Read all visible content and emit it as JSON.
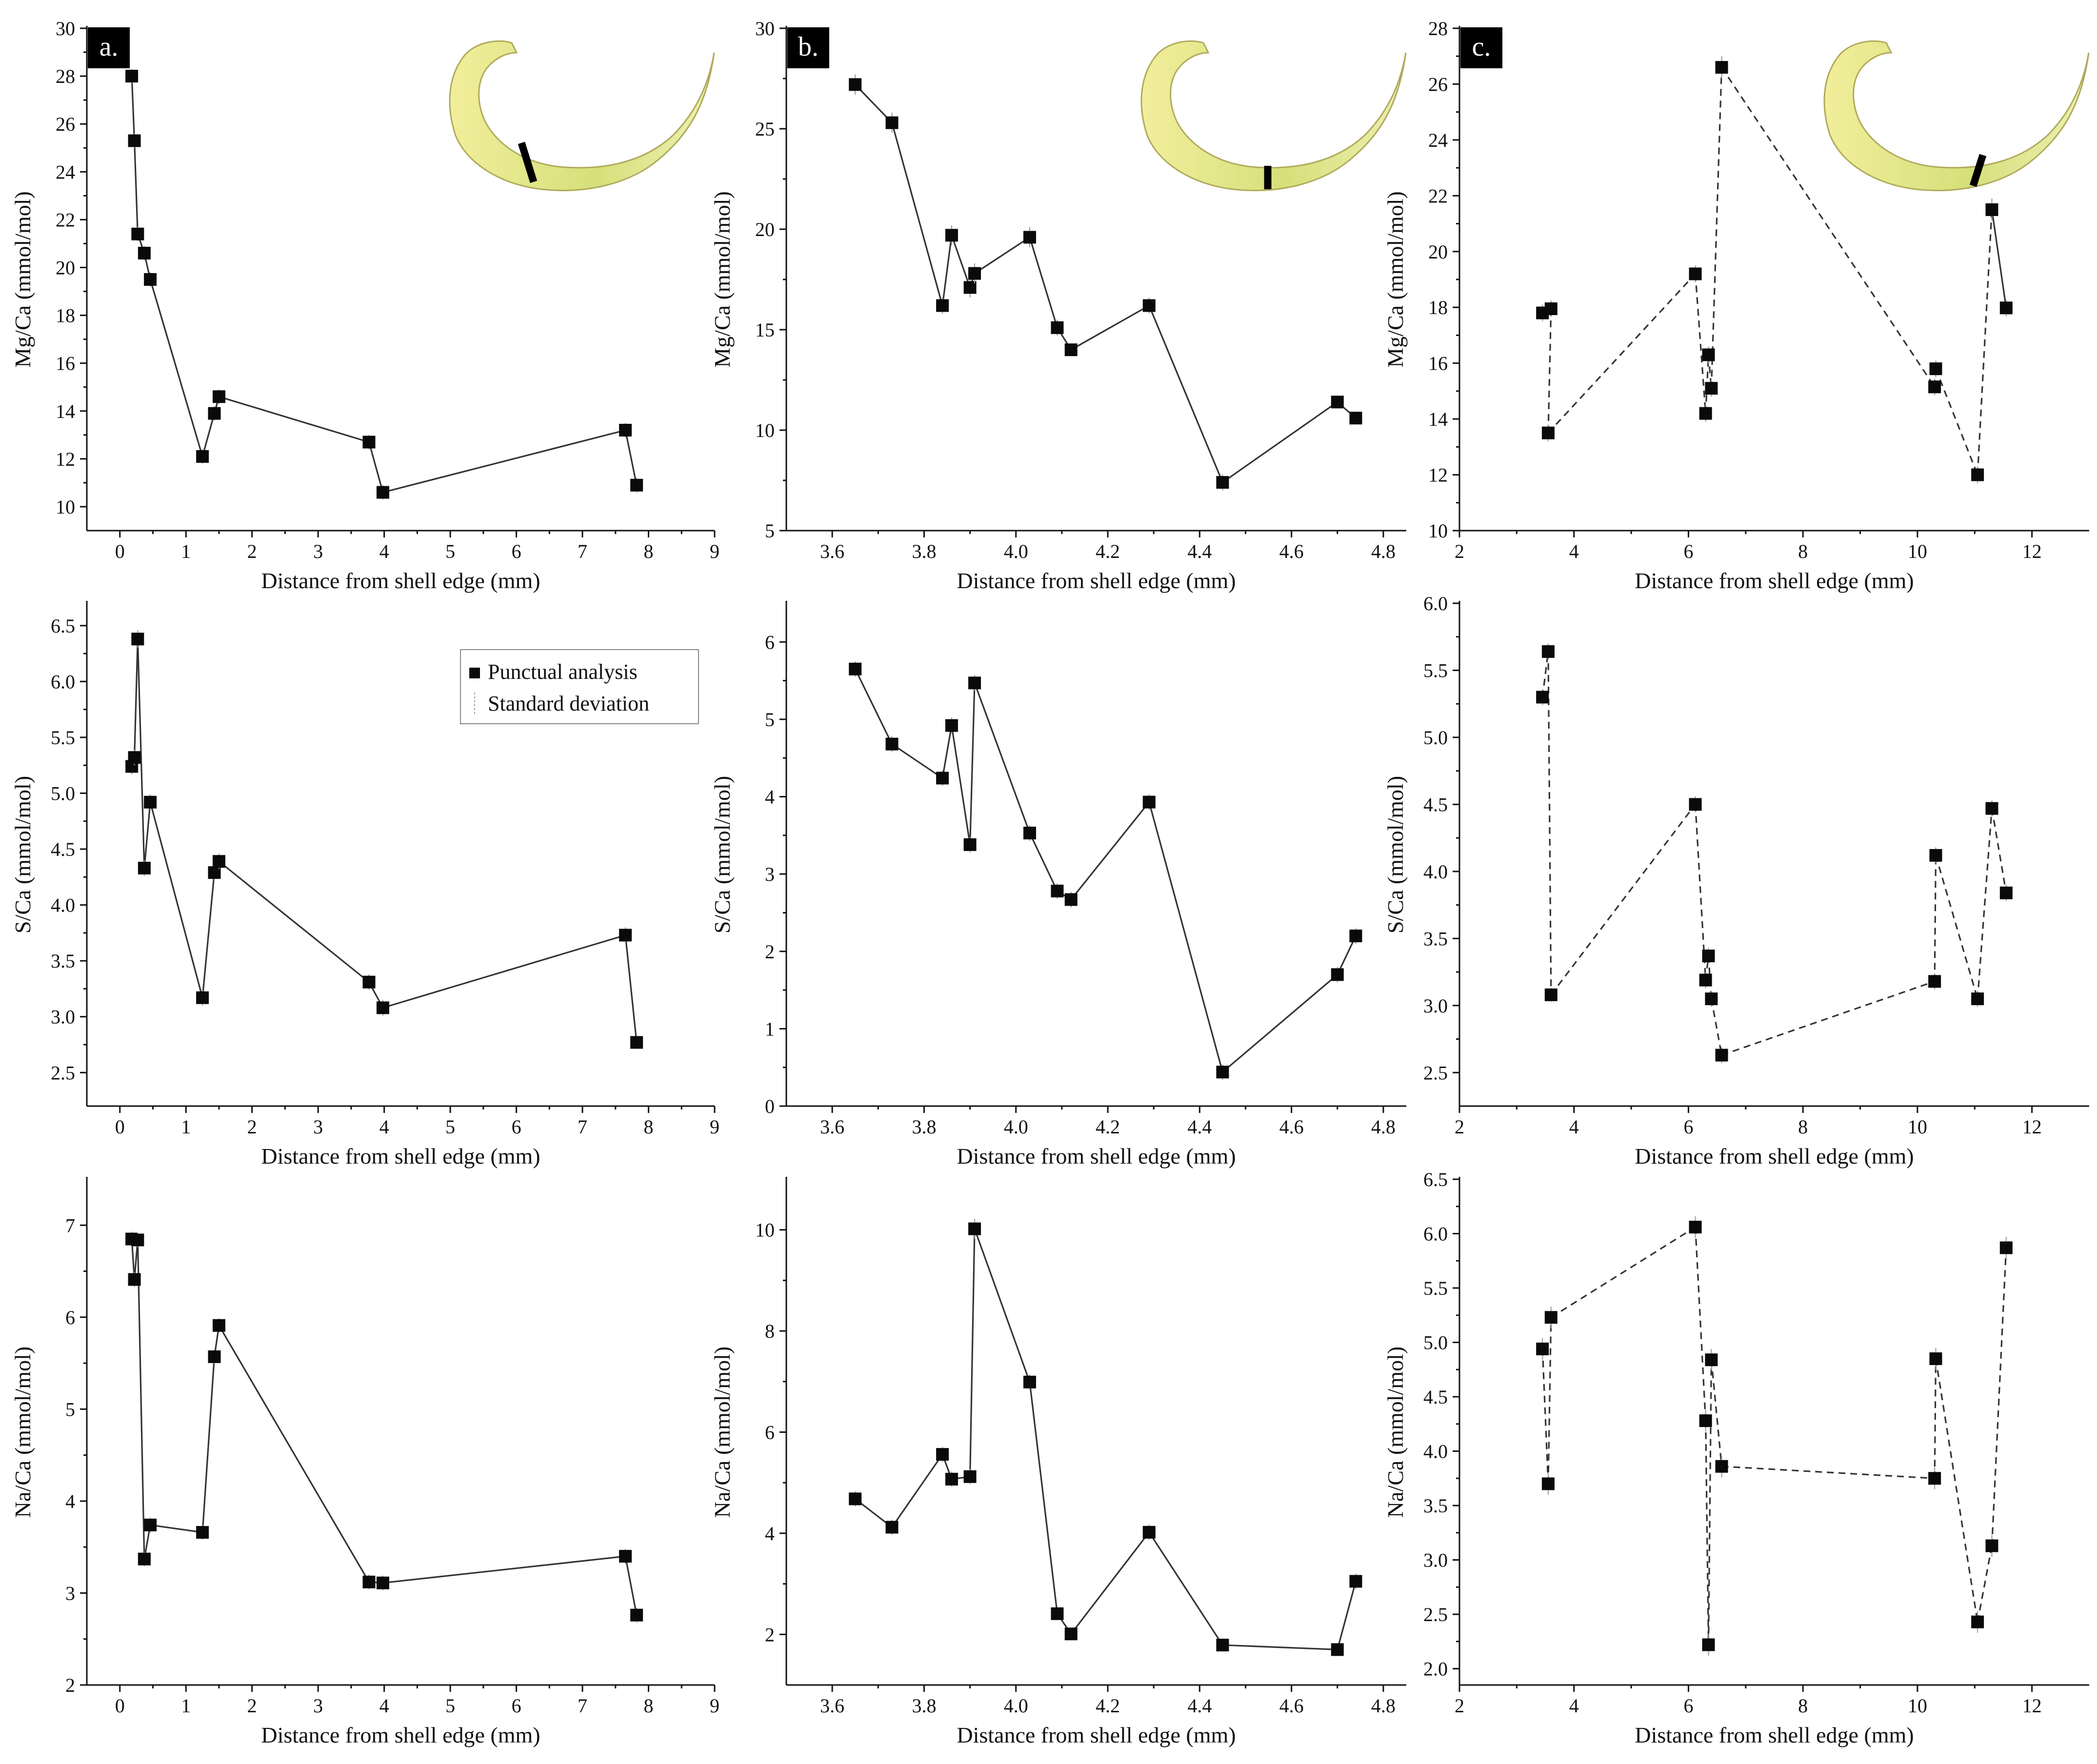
{
  "figure": {
    "xlabel": "Distance from shell edge (mm)",
    "legend": {
      "marker_label": "Punctual analysis",
      "errorbar_label": "Standard deviation"
    },
    "columns": [
      {
        "tag": "a.",
        "xlim": [
          -0.5,
          9
        ],
        "xticks": [
          0,
          1,
          2,
          3,
          4,
          5,
          6,
          7,
          8,
          9
        ],
        "xdecimals": 0,
        "line_style": "solid",
        "shell_band": "sector-a"
      },
      {
        "tag": "b.",
        "xlim": [
          3.5,
          4.85
        ],
        "xticks": [
          3.6,
          3.8,
          4.0,
          4.2,
          4.4,
          4.6,
          4.8
        ],
        "xdecimals": 1,
        "line_style": "solid",
        "shell_band": "sector-b"
      },
      {
        "tag": "c.",
        "xlim": [
          2,
          13
        ],
        "xticks": [
          2,
          4,
          6,
          8,
          10,
          12
        ],
        "xdecimals": 0,
        "line_style": "dashed",
        "shell_band": "sector-c"
      }
    ],
    "colors": {
      "shell_fill": "#f2ee9c",
      "shell_stroke": "#b0aa5a",
      "shell_band_green": "#d5e07a",
      "line": "#333333",
      "marker": "#0a0a0a",
      "errorbar": "#999999"
    }
  },
  "chart_data": [
    {
      "type": "line",
      "panel": "a",
      "element": "Mg",
      "title": "",
      "xlabel": "Distance from shell edge (mm)",
      "ylabel": "Mg/Ca (mmol/mol)",
      "ylim": [
        9,
        30
      ],
      "yticks": [
        10,
        12,
        14,
        16,
        18,
        20,
        22,
        24,
        26,
        28,
        30
      ],
      "ydecimals": 0,
      "x": [
        0.18,
        0.22,
        0.27,
        0.37,
        0.46,
        1.25,
        1.43,
        1.5,
        3.77,
        3.98,
        7.65,
        7.82
      ],
      "y": [
        28.0,
        25.3,
        21.4,
        20.6,
        19.5,
        12.1,
        13.9,
        14.6,
        12.7,
        10.6,
        13.2,
        10.9
      ],
      "error": [
        0.3,
        0.3,
        0.3,
        0.3,
        0.3,
        0.3,
        0.3,
        0.3,
        0.3,
        0.3,
        0.3,
        0.3
      ]
    },
    {
      "type": "line",
      "panel": "b",
      "element": "Mg",
      "title": "",
      "xlabel": "Distance from shell edge (mm)",
      "ylabel": "Mg/Ca (mmol/mol)",
      "ylim": [
        5,
        30
      ],
      "yticks": [
        5,
        10,
        15,
        20,
        25,
        30
      ],
      "ydecimals": 0,
      "x": [
        3.65,
        3.73,
        3.84,
        3.86,
        3.9,
        3.91,
        4.03,
        4.09,
        4.12,
        4.29,
        4.45,
        4.7,
        4.74
      ],
      "y": [
        27.2,
        25.3,
        16.2,
        19.7,
        17.1,
        17.8,
        19.6,
        15.1,
        14.0,
        16.2,
        7.4,
        11.4,
        10.6
      ],
      "error": [
        0.5,
        0.5,
        0.4,
        0.5,
        0.5,
        0.5,
        0.5,
        0.4,
        0.3,
        0.4,
        0.4,
        0.3,
        0.3
      ]
    },
    {
      "type": "line",
      "panel": "c",
      "element": "Mg",
      "title": "",
      "xlabel": "Distance from shell edge (mm)",
      "ylabel": "Mg/Ca (mmol/mol)",
      "ylim": [
        10,
        28
      ],
      "yticks": [
        10,
        12,
        14,
        16,
        18,
        20,
        22,
        24,
        26,
        28
      ],
      "ydecimals": 0,
      "x": [
        3.45,
        3.6,
        3.55,
        6.12,
        6.3,
        6.35,
        6.4,
        6.58,
        10.3,
        10.32,
        11.05,
        11.3,
        11.55
      ],
      "y": [
        17.8,
        17.95,
        13.5,
        19.2,
        14.2,
        16.3,
        15.1,
        26.6,
        15.15,
        15.8,
        12.0,
        21.5,
        17.98
      ],
      "error": [
        0.3,
        0.3,
        0.3,
        0.3,
        0.3,
        0.3,
        0.3,
        0.4,
        0.3,
        0.3,
        0.3,
        0.4,
        0.3
      ],
      "segment_styles": [
        "dashed",
        "dashed",
        "dashed",
        "dashed",
        "dashed",
        "dashed",
        "dashed",
        "dashed",
        "dashed",
        "dashed",
        "dashed",
        "solid"
      ]
    },
    {
      "type": "line",
      "panel": "a",
      "element": "S",
      "title": "",
      "xlabel": "Distance from shell edge (mm)",
      "ylabel": "S/Ca (mmol/mol)",
      "ylim": [
        2.2,
        6.7
      ],
      "yticks": [
        2.5,
        3.0,
        3.5,
        4.0,
        4.5,
        5.0,
        5.5,
        6.0,
        6.5
      ],
      "ydecimals": 1,
      "x": [
        0.18,
        0.22,
        0.27,
        0.37,
        0.46,
        1.25,
        1.43,
        1.5,
        3.77,
        3.98,
        7.65,
        7.82
      ],
      "y": [
        5.24,
        5.32,
        6.38,
        4.33,
        4.92,
        3.17,
        4.29,
        4.39,
        3.31,
        3.08,
        3.73,
        2.77
      ],
      "error": [
        0.07,
        0.07,
        0.08,
        0.07,
        0.07,
        0.07,
        0.07,
        0.07,
        0.07,
        0.07,
        0.07,
        0.05
      ]
    },
    {
      "type": "line",
      "panel": "b",
      "element": "S",
      "title": "",
      "xlabel": "Distance from shell edge (mm)",
      "ylabel": "S/Ca (mmol/mol)",
      "ylim": [
        0,
        6.5
      ],
      "yticks": [
        0,
        1,
        2,
        3,
        4,
        5,
        6
      ],
      "ydecimals": 0,
      "x": [
        3.65,
        3.73,
        3.84,
        3.86,
        3.9,
        3.91,
        4.03,
        4.09,
        4.12,
        4.29,
        4.45,
        4.7,
        4.74
      ],
      "y": [
        5.65,
        4.68,
        4.24,
        4.92,
        3.38,
        5.47,
        3.53,
        2.78,
        2.67,
        3.93,
        0.44,
        1.7,
        2.2
      ],
      "error": [
        0.1,
        0.1,
        0.1,
        0.1,
        0.1,
        0.1,
        0.1,
        0.1,
        0.1,
        0.1,
        0.1,
        0.1,
        0.1
      ]
    },
    {
      "type": "line",
      "panel": "c",
      "element": "S",
      "title": "",
      "xlabel": "Distance from shell edge (mm)",
      "ylabel": "S/Ca (mmol/mol)",
      "ylim": [
        2.25,
        6.0
      ],
      "yticks": [
        2.5,
        3.0,
        3.5,
        4.0,
        4.5,
        5.0,
        5.5,
        6.0
      ],
      "ydecimals": 1,
      "x": [
        3.45,
        3.55,
        3.6,
        6.12,
        6.3,
        6.35,
        6.4,
        6.58,
        10.3,
        10.32,
        11.05,
        11.3,
        11.55
      ],
      "y": [
        5.3,
        5.64,
        3.08,
        4.5,
        3.19,
        3.37,
        3.05,
        2.63,
        3.18,
        4.12,
        3.05,
        4.47,
        3.84
      ],
      "error": [
        0.06,
        0.06,
        0.05,
        0.06,
        0.06,
        0.06,
        0.06,
        0.06,
        0.06,
        0.06,
        0.06,
        0.06,
        0.06
      ]
    },
    {
      "type": "line",
      "panel": "a",
      "element": "Na",
      "title": "",
      "xlabel": "Distance from shell edge (mm)",
      "ylabel": "Na/Ca (mmol/mol)",
      "ylim": [
        2,
        7.5
      ],
      "yticks": [
        2,
        3,
        4,
        5,
        6,
        7
      ],
      "ydecimals": 0,
      "x": [
        0.18,
        0.22,
        0.27,
        0.37,
        0.46,
        1.25,
        1.43,
        1.5,
        3.77,
        3.98,
        7.65,
        7.82
      ],
      "y": [
        6.85,
        6.41,
        6.84,
        3.37,
        3.74,
        3.66,
        5.57,
        5.91,
        3.12,
        3.11,
        3.4,
        2.76
      ],
      "error": [
        0.08,
        0.08,
        0.08,
        0.08,
        0.08,
        0.08,
        0.08,
        0.08,
        0.08,
        0.08,
        0.08,
        0.08
      ]
    },
    {
      "type": "line",
      "panel": "b",
      "element": "Na",
      "title": "",
      "xlabel": "Distance from shell edge (mm)",
      "ylabel": "Na/Ca (mmol/mol)",
      "ylim": [
        1,
        11
      ],
      "yticks": [
        2,
        4,
        6,
        8,
        10
      ],
      "ydecimals": 0,
      "x": [
        3.65,
        3.73,
        3.84,
        3.86,
        3.9,
        3.91,
        4.03,
        4.09,
        4.12,
        4.29,
        4.45,
        4.7,
        4.74
      ],
      "y": [
        4.68,
        4.12,
        5.56,
        5.07,
        5.12,
        10.02,
        6.99,
        2.41,
        2.01,
        4.02,
        1.79,
        1.7,
        3.05
      ],
      "error": [
        0.15,
        0.15,
        0.15,
        0.15,
        0.15,
        0.2,
        0.15,
        0.1,
        0.1,
        0.15,
        0.1,
        0.1,
        0.15
      ]
    },
    {
      "type": "line",
      "panel": "c",
      "element": "Na",
      "title": "",
      "xlabel": "Distance from shell edge (mm)",
      "ylabel": "Na/Ca (mmol/mol)",
      "ylim": [
        1.85,
        6.5
      ],
      "yticks": [
        2.0,
        2.5,
        3.0,
        3.5,
        4.0,
        4.5,
        5.0,
        5.5,
        6.0,
        6.5
      ],
      "ydecimals": 1,
      "x": [
        3.45,
        3.55,
        3.6,
        6.12,
        6.3,
        6.35,
        6.4,
        6.58,
        10.3,
        10.32,
        11.05,
        11.3,
        11.55
      ],
      "y": [
        4.94,
        3.7,
        5.23,
        6.06,
        4.28,
        2.22,
        4.84,
        3.86,
        3.75,
        4.85,
        2.43,
        3.13,
        5.87
      ],
      "error": [
        0.1,
        0.1,
        0.1,
        0.1,
        0.1,
        0.1,
        0.1,
        0.1,
        0.1,
        0.1,
        0.1,
        0.1,
        0.1
      ]
    }
  ]
}
